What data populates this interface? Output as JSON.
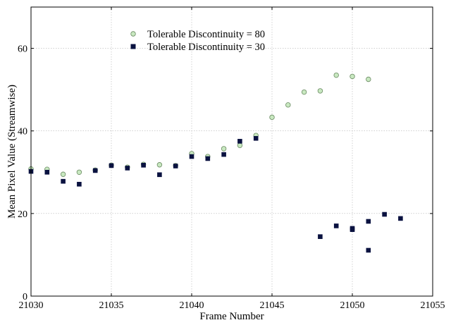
{
  "chart_data": {
    "type": "scatter",
    "xlabel": "Frame Number",
    "ylabel": "Mean Pixel Value (Streamwise)",
    "xlim": [
      21030,
      21055
    ],
    "ylim": [
      0,
      70
    ],
    "xticks": [
      21030,
      21035,
      21040,
      21045,
      21050,
      21055
    ],
    "yticks": [
      0,
      20,
      40,
      60
    ],
    "xtick_labels": [
      "21030",
      "21035",
      "21040",
      "21045",
      "21050",
      "21055"
    ],
    "ytick_labels": [
      "0",
      "20",
      "40",
      "60"
    ],
    "grid": true,
    "legend_position": "upper-left",
    "series": [
      {
        "name": "Tolerable Discontinuity = 80",
        "marker": "circle",
        "color": "#c8e8c0",
        "edge_color": "#6a8a62",
        "points": [
          [
            21030,
            30.8
          ],
          [
            21031,
            30.7
          ],
          [
            21032,
            29.5
          ],
          [
            21033,
            30.0
          ],
          [
            21034,
            30.5
          ],
          [
            21035,
            31.7
          ],
          [
            21036,
            31.2
          ],
          [
            21037,
            31.9
          ],
          [
            21038,
            31.8
          ],
          [
            21039,
            31.6
          ],
          [
            21040,
            34.5
          ],
          [
            21041,
            33.8
          ],
          [
            21042,
            35.7
          ],
          [
            21043,
            36.5
          ],
          [
            21044,
            38.9
          ],
          [
            21045,
            43.3
          ],
          [
            21046,
            46.3
          ],
          [
            21047,
            49.4
          ],
          [
            21048,
            49.7
          ],
          [
            21049,
            53.5
          ],
          [
            21050,
            53.2
          ],
          [
            21051,
            52.5
          ]
        ]
      },
      {
        "name": "Tolerable Discontinuity = 30",
        "marker": "square",
        "color": "#0a1240",
        "edge_color": "#0a1240",
        "points": [
          [
            21030,
            30.2
          ],
          [
            21031,
            30.0
          ],
          [
            21032,
            27.8
          ],
          [
            21033,
            27.1
          ],
          [
            21034,
            30.4
          ],
          [
            21035,
            31.6
          ],
          [
            21036,
            31.0
          ],
          [
            21037,
            31.7
          ],
          [
            21038,
            29.4
          ],
          [
            21039,
            31.5
          ],
          [
            21040,
            33.8
          ],
          [
            21041,
            33.3
          ],
          [
            21042,
            34.3
          ],
          [
            21043,
            37.5
          ],
          [
            21044,
            38.2
          ],
          [
            21048,
            14.4
          ],
          [
            21049,
            17.0
          ],
          [
            21050,
            16.1
          ],
          [
            21050,
            16.4
          ],
          [
            21051,
            18.1
          ],
          [
            21051,
            11.1
          ],
          [
            21052,
            19.8
          ],
          [
            21053,
            18.8
          ]
        ]
      }
    ]
  }
}
